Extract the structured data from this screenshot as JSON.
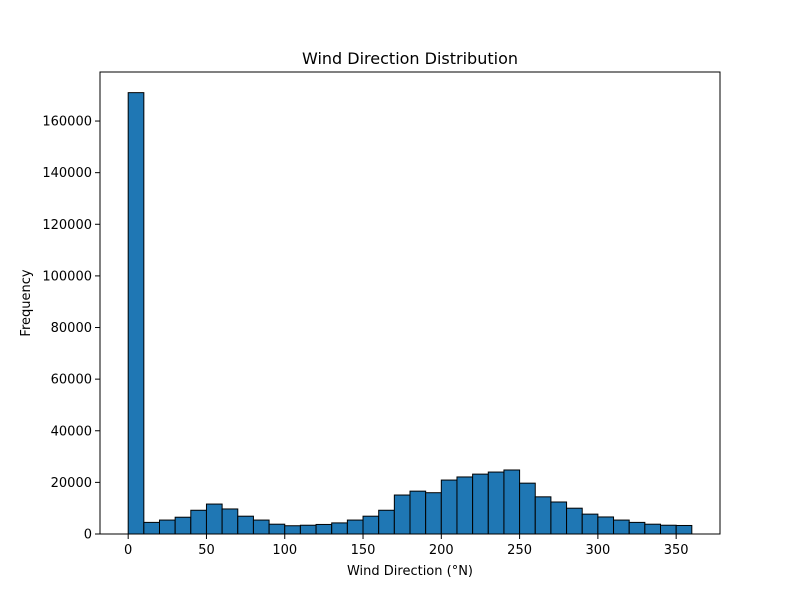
{
  "chart_data": {
    "type": "bar",
    "title": "Wind Direction Distribution",
    "xlabel": "Wind Direction (°N)",
    "ylabel": "Frequency",
    "xlim": [
      -18,
      378
    ],
    "ylim": [
      0,
      179000
    ],
    "xticks": [
      0,
      50,
      100,
      150,
      200,
      250,
      300,
      350
    ],
    "yticks": [
      0,
      20000,
      40000,
      60000,
      80000,
      100000,
      120000,
      140000,
      160000
    ],
    "bin_width": 10,
    "bin_starts": [
      0,
      10,
      20,
      30,
      40,
      50,
      60,
      70,
      80,
      90,
      100,
      110,
      120,
      130,
      140,
      150,
      160,
      170,
      180,
      190,
      200,
      210,
      220,
      230,
      240,
      250,
      260,
      270,
      280,
      290,
      300,
      310,
      320,
      330,
      340,
      350
    ],
    "values": [
      171000,
      4500,
      5400,
      6500,
      9200,
      11600,
      9700,
      6900,
      5400,
      3800,
      3200,
      3400,
      3700,
      4300,
      5400,
      6900,
      9200,
      15100,
      16600,
      16000,
      20900,
      22100,
      23200,
      24000,
      24800,
      19700,
      14400,
      12400,
      10000,
      7700,
      6600,
      5400,
      4500,
      3800,
      3400,
      3300
    ],
    "grid": false,
    "colors": {
      "bar_fill": "#1f77b4",
      "bar_edge": "#000000"
    }
  }
}
